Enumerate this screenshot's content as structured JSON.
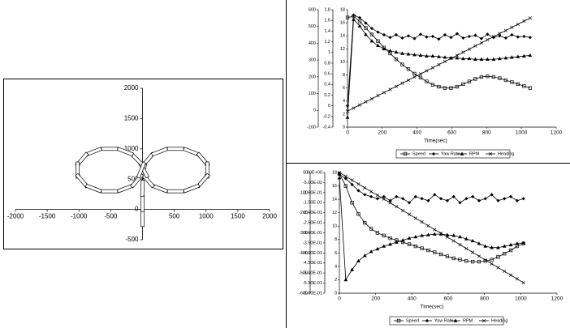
{
  "chart_data": [
    {
      "type": "line",
      "color": "#000000",
      "x": [
        0,
        0,
        0,
        20,
        87,
        270,
        520,
        770,
        953,
        1020,
        953,
        770,
        520,
        270,
        87,
        20,
        -87,
        -270,
        -520,
        -770,
        -953,
        -1020,
        -953,
        -770,
        -520,
        -270,
        -87,
        -20
      ],
      "values": [
        -150,
        100,
        350,
        650,
        825,
        953,
        1000,
        953,
        825,
        650,
        475,
        347,
        300,
        347,
        475,
        650,
        825,
        953,
        1000,
        953,
        825,
        650,
        475,
        347,
        300,
        347,
        475,
        650
      ],
      "xlim": [
        -2000,
        2000
      ],
      "xticks": [
        -2000,
        -1500,
        -1000,
        -500,
        0,
        500,
        1000,
        1500,
        2000
      ],
      "ylim": [
        -500,
        2000
      ],
      "yticks": [
        -500,
        0,
        500,
        1000,
        1500,
        2000
      ]
    },
    {
      "type": "line",
      "x_label": "Time(sec)",
      "legend": "bottom",
      "x": [
        0,
        35,
        70,
        105,
        140,
        175,
        210,
        245,
        280,
        315,
        350,
        385,
        420,
        455,
        490,
        525,
        560,
        595,
        630,
        665,
        700,
        735,
        770,
        805,
        840,
        875,
        910,
        945,
        980,
        1015,
        1050
      ],
      "xlim": [
        0,
        1200
      ],
      "xticks": [
        0,
        200,
        400,
        600,
        800,
        1000,
        1200
      ],
      "ylim": [
        -100,
        600
      ],
      "yticks": [
        -100,
        0,
        100,
        200,
        300,
        400,
        500,
        600
      ],
      "y2lim": [
        -0.4,
        1.8
      ],
      "y2ticks": [
        -0.4,
        -0.2,
        0,
        0.2,
        0.4,
        0.6,
        0.8,
        1,
        1.2,
        1.4,
        1.6,
        1.8
      ],
      "y3lim": [
        0,
        18
      ],
      "y3ticks": [
        0,
        2,
        4,
        6,
        8,
        10,
        12,
        14,
        16,
        18
      ],
      "series": [
        {
          "name": "Speed",
          "color": "#000000",
          "marker": "square",
          "axis": "y3",
          "values": [
            16.8,
            17,
            16.2,
            15.2,
            14.2,
            13.2,
            12.2,
            11.3,
            10.4,
            9.6,
            8.9,
            8.2,
            7.6,
            7.0,
            6.5,
            6.2,
            6.0,
            6.0,
            6.2,
            6.6,
            7.0,
            7.4,
            7.7,
            7.8,
            7.7,
            7.5,
            7.2,
            6.9,
            6.6,
            6.3,
            6.0
          ]
        },
        {
          "name": "Yaw Rate",
          "color": "#000000",
          "marker": "diamond",
          "axis": "y2",
          "values": [
            0,
            1.7,
            1.65,
            1.55,
            1.45,
            1.38,
            1.33,
            1.28,
            1.33,
            1.27,
            1.31,
            1.26,
            1.34,
            1.29,
            1.3,
            1.25,
            1.33,
            1.28,
            1.35,
            1.27,
            1.3,
            1.32,
            1.26,
            1.34,
            1.28,
            1.31,
            1.27,
            1.33,
            1.29,
            1.3,
            1.28
          ]
        },
        {
          "name": "RPM",
          "color": "#000000",
          "marker": "triangle",
          "axis": "y3",
          "values": [
            1.5,
            16.5,
            15.5,
            14.2,
            13.2,
            12.5,
            12,
            11.7,
            11.5,
            11.3,
            11.2,
            11.1,
            11.0,
            10.9,
            10.9,
            10.8,
            10.7,
            10.6,
            10.6,
            10.5,
            10.5,
            10.4,
            10.4,
            10.4,
            10.4,
            10.5,
            10.6,
            10.7,
            10.8,
            10.9,
            11.0
          ]
        },
        {
          "name": "Heading",
          "color": "#000000",
          "marker": "cross",
          "values": [
            -5,
            14,
            32,
            51,
            69,
            88,
            106,
            125,
            143,
            162,
            180,
            199,
            217,
            236,
            254,
            273,
            291,
            310,
            328,
            347,
            365,
            384,
            402,
            421,
            439,
            458,
            476,
            495,
            513,
            532,
            550
          ]
        }
      ]
    },
    {
      "type": "line",
      "x_label": "Time(sec)",
      "legend": "bottom",
      "x": [
        0,
        35,
        70,
        105,
        140,
        175,
        210,
        245,
        280,
        315,
        350,
        385,
        420,
        455,
        490,
        525,
        560,
        595,
        630,
        665,
        700,
        735,
        770,
        805,
        840,
        875,
        910,
        945,
        980,
        1015
      ],
      "xlim": [
        0,
        1200
      ],
      "xticks": [
        0,
        200,
        400,
        600,
        800,
        1000,
        1200
      ],
      "ylim": [
        -600,
        0
      ],
      "yticks": [
        -600,
        -500,
        -400,
        -300,
        -200,
        -100,
        0
      ],
      "y2lim": [
        -0.6,
        0
      ],
      "y2ticks": [
        {
          "value": -0.6,
          "label": "-6.00E-01"
        },
        {
          "value": -0.55,
          "label": "-5.50E-01"
        },
        {
          "value": -0.5,
          "label": "-5.00E-01"
        },
        {
          "value": -0.45,
          "label": "-4.50E-01"
        },
        {
          "value": -0.4,
          "label": "-4.00E-01"
        },
        {
          "value": -0.35,
          "label": "-3.50E-01"
        },
        {
          "value": -0.3,
          "label": "-3.00E-01"
        },
        {
          "value": -0.25,
          "label": "-2.50E-01"
        },
        {
          "value": -0.2,
          "label": "-2.00E-01"
        },
        {
          "value": -0.15,
          "label": "-1.50E-01"
        },
        {
          "value": -0.1,
          "label": "-1.00E-01"
        },
        {
          "value": -0.05,
          "label": "-5.00E-02"
        },
        {
          "value": 0,
          "label": "0.00E+00"
        }
      ],
      "y3lim": [
        0,
        18
      ],
      "y3ticks": [
        0,
        2,
        4,
        6,
        8,
        10,
        12,
        14,
        16,
        18
      ],
      "series": [
        {
          "name": "Speed",
          "color": "#000000",
          "marker": "square",
          "axis": "y3",
          "values": [
            17.8,
            16,
            13.5,
            11.8,
            10.5,
            9.6,
            9.0,
            8.6,
            8.2,
            7.9,
            7.6,
            7.3,
            7.0,
            6.7,
            6.4,
            6.1,
            5.8,
            5.5,
            5.2,
            5.0,
            4.8,
            4.7,
            4.7,
            4.8,
            5.0,
            5.4,
            5.9,
            6.4,
            7.0,
            7.4
          ]
        },
        {
          "name": "Yaw Rate",
          "color": "#000000",
          "marker": "diamond",
          "axis": "y2",
          "values": [
            -0.01,
            -0.03,
            -0.06,
            -0.09,
            -0.11,
            -0.12,
            -0.13,
            -0.12,
            -0.14,
            -0.12,
            -0.13,
            -0.15,
            -0.12,
            -0.13,
            -0.14,
            -0.11,
            -0.13,
            -0.14,
            -0.12,
            -0.15,
            -0.13,
            -0.12,
            -0.14,
            -0.13,
            -0.11,
            -0.14,
            -0.13,
            -0.12,
            -0.14,
            -0.13
          ]
        },
        {
          "name": "RPM",
          "color": "#000000",
          "marker": "triangle",
          "axis": "y3",
          "values": [
            17.2,
            2.0,
            3.5,
            4.8,
            5.6,
            6.2,
            6.6,
            7.0,
            7.3,
            7.6,
            7.9,
            8.2,
            8.4,
            8.6,
            8.7,
            8.8,
            8.8,
            8.7,
            8.6,
            8.4,
            8.1,
            7.8,
            7.4,
            7.0,
            6.8,
            6.8,
            7.0,
            7.2,
            7.4,
            7.5
          ]
        },
        {
          "name": "Heading",
          "color": "#000000",
          "marker": "cross",
          "values": [
            0,
            -19,
            -38,
            -57,
            -76,
            -95,
            -113,
            -132,
            -151,
            -170,
            -189,
            -208,
            -227,
            -246,
            -265,
            -284,
            -302,
            -321,
            -340,
            -359,
            -378,
            -397,
            -416,
            -435,
            -454,
            -473,
            -491,
            -510,
            -529,
            -548
          ]
        }
      ]
    }
  ]
}
